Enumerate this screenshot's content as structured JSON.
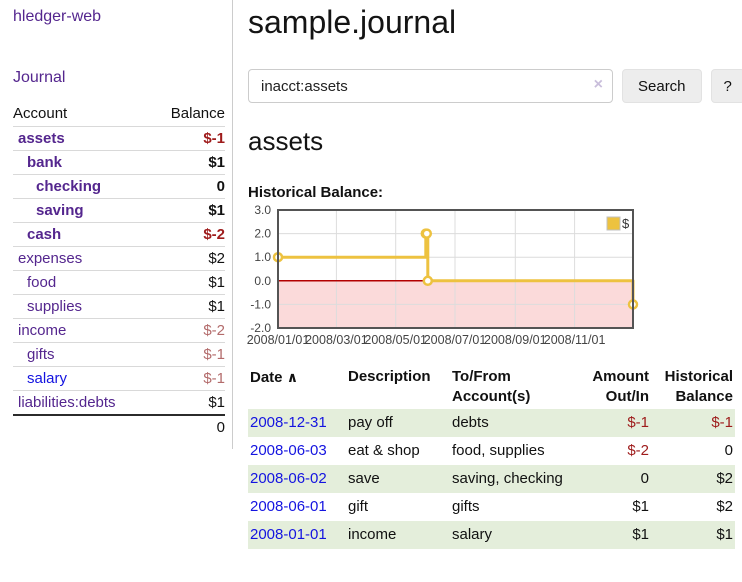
{
  "sidebar": {
    "app_title": "hledger-web",
    "journal_label": "Journal",
    "accounts_table": {
      "headers": {
        "account": "Account",
        "balance": "Balance"
      },
      "rows": [
        {
          "name": "assets",
          "indent": 1,
          "bold": true,
          "link_color": "purple",
          "balance": "$-1",
          "balance_class": "neg"
        },
        {
          "name": "bank",
          "indent": 2,
          "bold": true,
          "link_color": "purple",
          "balance": "$1",
          "balance_class": "pos"
        },
        {
          "name": "checking",
          "indent": 3,
          "bold": true,
          "link_color": "purple",
          "balance": "0",
          "balance_class": "pos"
        },
        {
          "name": "saving",
          "indent": 3,
          "bold": true,
          "link_color": "purple",
          "balance": "$1",
          "balance_class": "pos"
        },
        {
          "name": "cash",
          "indent": 2,
          "bold": true,
          "link_color": "purple",
          "balance": "$-2",
          "balance_class": "neg"
        },
        {
          "name": "expenses",
          "indent": 1,
          "bold": false,
          "link_color": "purple",
          "balance": "$2",
          "balance_class": "pos"
        },
        {
          "name": "food",
          "indent": 2,
          "bold": false,
          "link_color": "purple",
          "balance": "$1",
          "balance_class": "pos"
        },
        {
          "name": "supplies",
          "indent": 2,
          "bold": false,
          "link_color": "purple",
          "balance": "$1",
          "balance_class": "pos"
        },
        {
          "name": "income",
          "indent": 1,
          "bold": false,
          "link_color": "purple",
          "balance": "$-2",
          "balance_class": "muted"
        },
        {
          "name": "gifts",
          "indent": 2,
          "bold": false,
          "link_color": "purple",
          "balance": "$-1",
          "balance_class": "muted"
        },
        {
          "name": "salary",
          "indent": 2,
          "bold": false,
          "link_color": "blue",
          "balance": "$-1",
          "balance_class": "muted"
        },
        {
          "name": "liabilities:debts",
          "indent": 1,
          "bold": false,
          "link_color": "purple",
          "balance": "$1",
          "balance_class": "pos"
        }
      ],
      "total": "0"
    }
  },
  "main": {
    "title": "sample.journal",
    "search": {
      "value": "inacct:assets",
      "clear_icon": "×",
      "button_label": "Search",
      "help_label": "?"
    },
    "account_heading": "assets",
    "chart_heading": "Historical Balance:"
  },
  "chart_data": {
    "type": "line",
    "title": "Historical Balance:",
    "step": true,
    "x_start": "2008-01-01",
    "x_end": "2008-12-31",
    "ylim": [
      -2,
      3
    ],
    "yticks": [
      "3.0",
      "2.0",
      "1.0",
      "0.0",
      "-1.0",
      "-2.0"
    ],
    "xticks": [
      "2008/01/01",
      "2008/03/01",
      "2008/05/01",
      "2008/07/01",
      "2008/09/01",
      "2008/11/01"
    ],
    "series": [
      {
        "name": "$",
        "color": "#EDC240",
        "points": [
          [
            "2008-01-01",
            1
          ],
          [
            "2008-06-01",
            2
          ],
          [
            "2008-06-02",
            2
          ],
          [
            "2008-06-03",
            0
          ],
          [
            "2008-12-31",
            -1
          ]
        ]
      }
    ],
    "legend_position": "top-right",
    "grid": true,
    "negative_region_color": "#fbdada",
    "zero_line_color": "#b30000",
    "border_color": "#545454",
    "gridline_color": "#dcdcdc"
  },
  "register": {
    "headers": {
      "date": "Date",
      "sort_icon": "∧",
      "description": "Description",
      "accounts": "To/From Account(s)",
      "amount": "Amount Out/In",
      "balance": "Historical Balance"
    },
    "rows": [
      {
        "date": "2008-12-31",
        "description": "pay off",
        "accounts": "debts",
        "amount": "$-1",
        "amount_class": "neg",
        "balance": "$-1",
        "balance_class": "neg"
      },
      {
        "date": "2008-06-03",
        "description": "eat & shop",
        "accounts": "food, supplies",
        "amount": "$-2",
        "amount_class": "neg",
        "balance": "0",
        "balance_class": ""
      },
      {
        "date": "2008-06-02",
        "description": "save",
        "accounts": "saving, checking",
        "amount": "0",
        "amount_class": "",
        "balance": "$2",
        "balance_class": ""
      },
      {
        "date": "2008-06-01",
        "description": "gift",
        "accounts": "gifts",
        "amount": "$1",
        "amount_class": "",
        "balance": "$2",
        "balance_class": ""
      },
      {
        "date": "2008-01-01",
        "description": "income",
        "accounts": "salary",
        "amount": "$1",
        "amount_class": "",
        "balance": "$1",
        "balance_class": ""
      }
    ]
  }
}
